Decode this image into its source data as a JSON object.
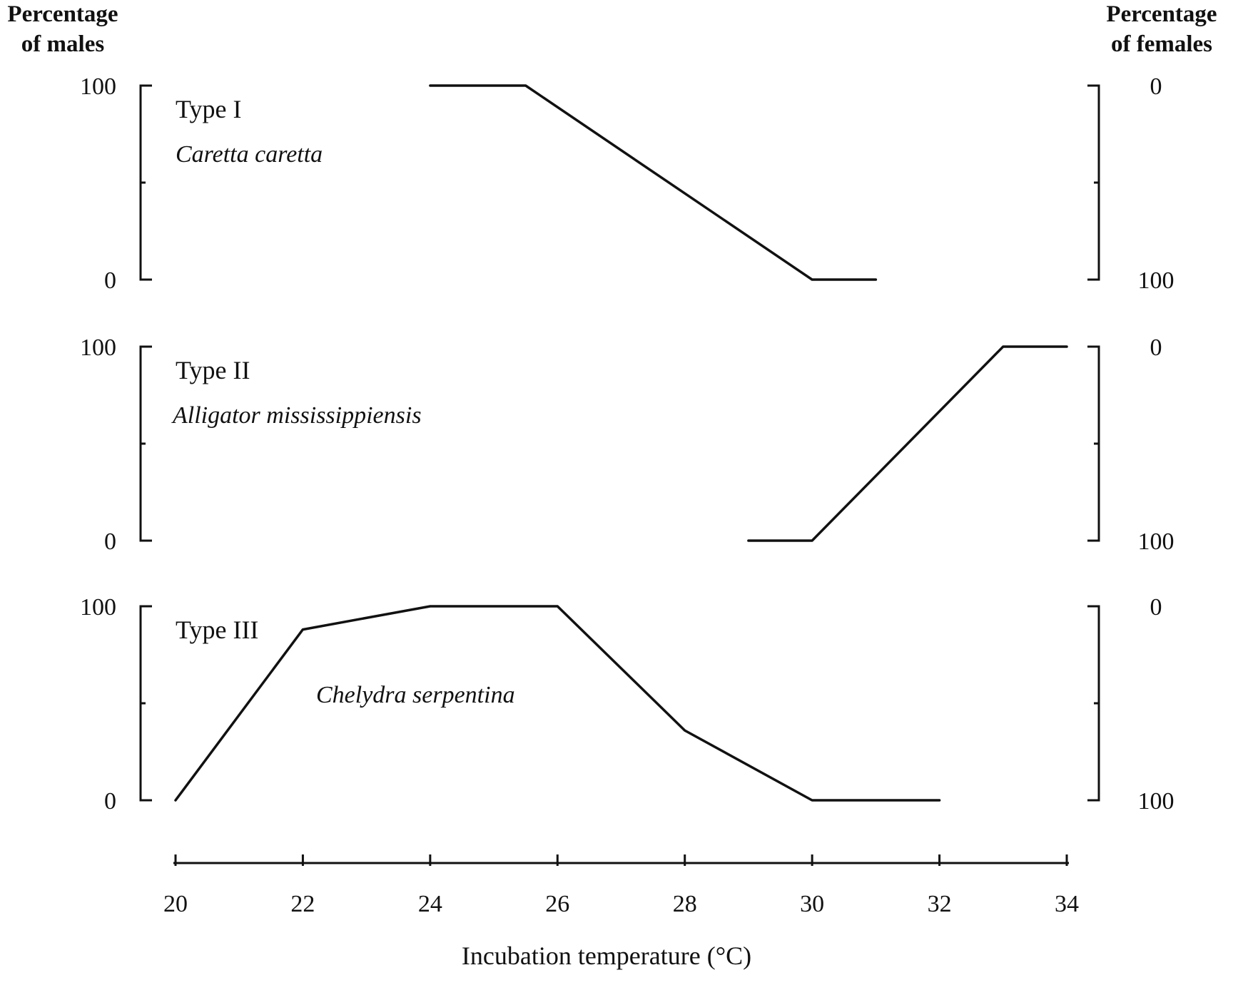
{
  "left_axis_title": [
    "Percentage",
    "of males"
  ],
  "right_axis_title": [
    "Percentage",
    "of females"
  ],
  "chart_data": {
    "type": "line",
    "xlabel": "Incubation temperature (°C)",
    "x_ticks": [
      20,
      22,
      24,
      26,
      28,
      30,
      32,
      34
    ],
    "xlim": [
      20,
      34
    ],
    "panels": [
      {
        "title": "Type I",
        "species": "Caretta caretta",
        "ylim": [
          0,
          100
        ],
        "left_ticks": [
          "100",
          "0"
        ],
        "right_ticks": [
          "0",
          "100"
        ],
        "series": [
          {
            "x": [
              24,
              25.5,
              30,
              31
            ],
            "y": [
              100,
              100,
              0,
              0
            ]
          }
        ]
      },
      {
        "title": "Type II",
        "species": "Alligator mississippiensis",
        "ylim": [
          0,
          100
        ],
        "left_ticks": [
          "100",
          "0"
        ],
        "right_ticks": [
          "0",
          "100"
        ],
        "series": [
          {
            "x": [
              29,
              30,
              33,
              34
            ],
            "y": [
              0,
              0,
              100,
              100
            ]
          }
        ]
      },
      {
        "title": "Type III",
        "species": "Chelydra serpentina",
        "ylim": [
          0,
          100
        ],
        "left_ticks": [
          "100",
          "0"
        ],
        "right_ticks": [
          "0",
          "100"
        ],
        "series": [
          {
            "x": [
              20,
              22,
              24,
              26,
              28,
              30,
              32
            ],
            "y": [
              0,
              88,
              100,
              100,
              36,
              0,
              0
            ]
          }
        ]
      }
    ]
  }
}
